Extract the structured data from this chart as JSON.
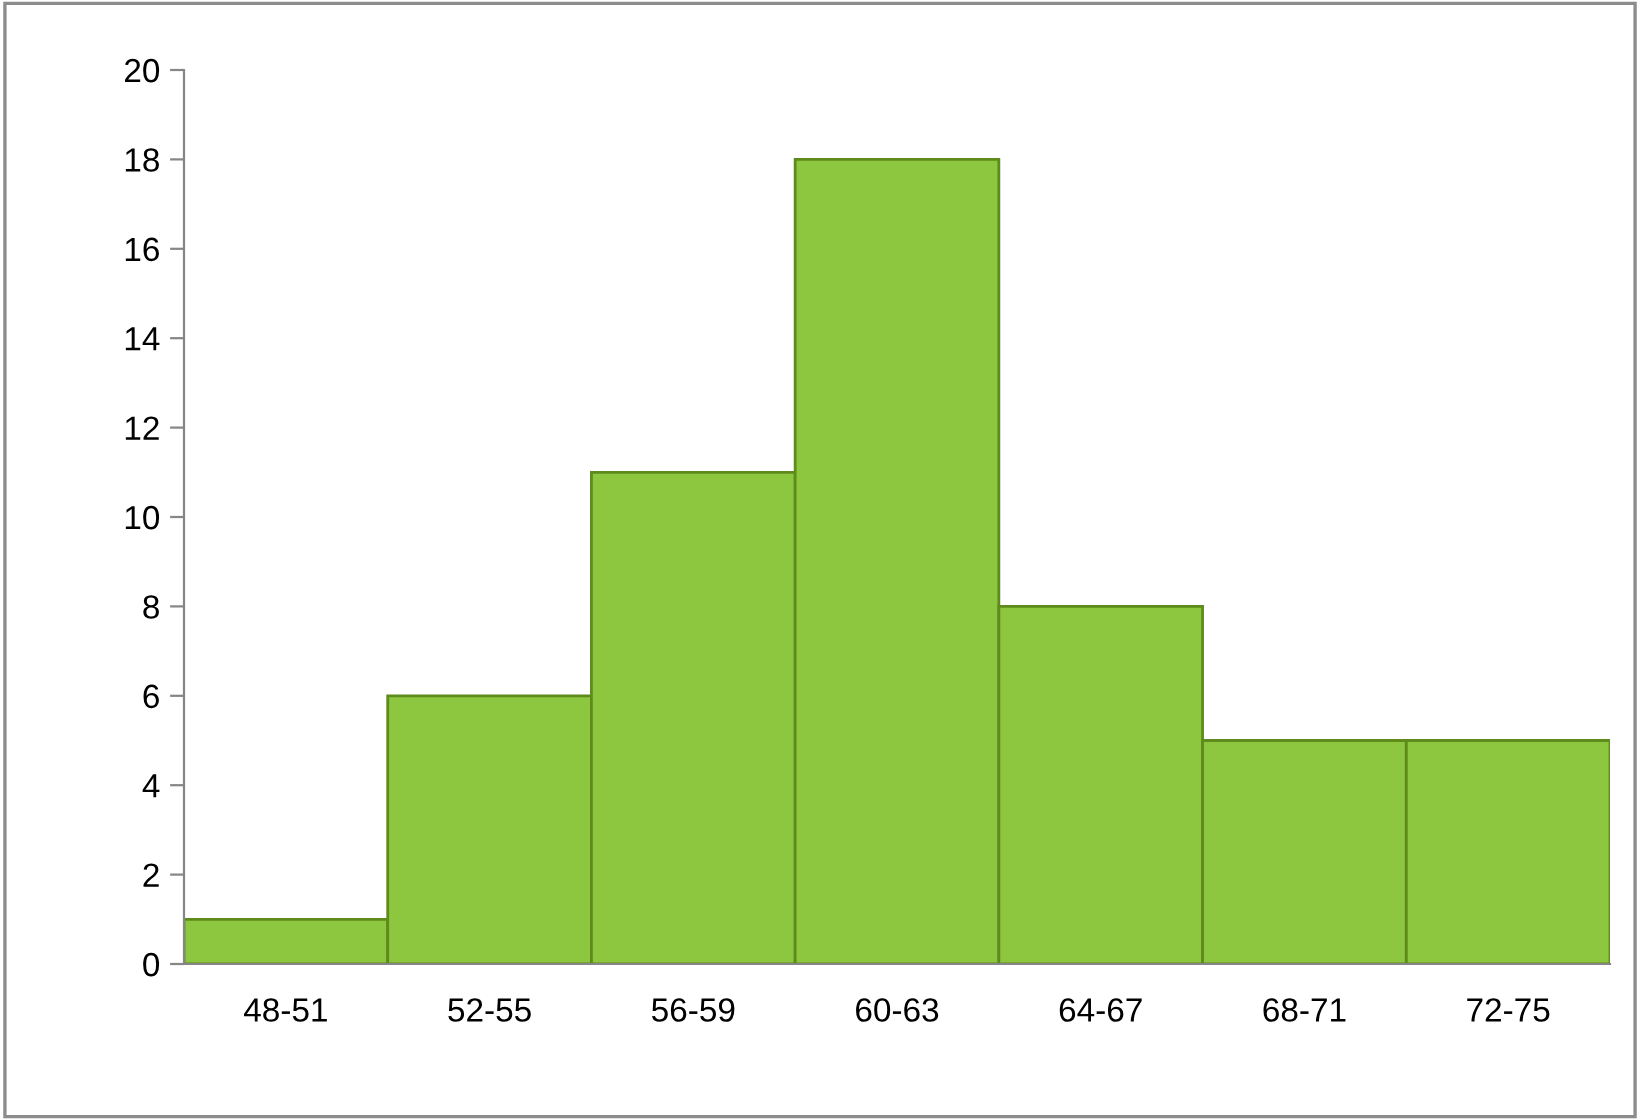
{
  "chart_data": {
    "type": "bar",
    "categories": [
      "48-51",
      "52-55",
      "56-59",
      "60-63",
      "64-67",
      "68-71",
      "72-75"
    ],
    "values": [
      1,
      6,
      11,
      18,
      8,
      5,
      5
    ],
    "color": "#8dc63f",
    "ylim": [
      0,
      20
    ],
    "yticks": [
      0,
      2,
      4,
      6,
      8,
      10,
      12,
      14,
      16,
      18,
      20
    ],
    "grid": false,
    "legend": false
  }
}
